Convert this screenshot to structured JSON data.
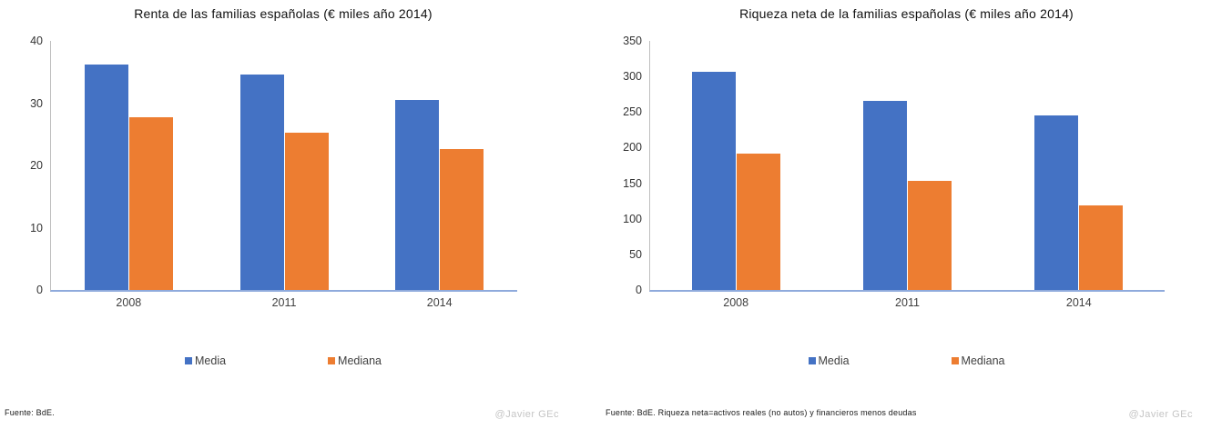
{
  "colors": {
    "media_blue": "#4472C4",
    "mediana_orange": "#ED7D31",
    "x_axis_line": "#8FAADC",
    "y_axis_line": "#BFBFBF",
    "label_text": "#404040",
    "credit_gray": "#C5C5C5"
  },
  "chart_data": [
    {
      "type": "bar",
      "title": "Renta de las familias españolas  (€ miles año 2014)",
      "categories": [
        "2008",
        "2011",
        "2014"
      ],
      "series": [
        {
          "name": "Media",
          "color": "#4472C4",
          "values": [
            36.2,
            34.6,
            30.5
          ]
        },
        {
          "name": "Mediana",
          "color": "#ED7D31",
          "values": [
            27.8,
            25.2,
            22.7
          ]
        }
      ],
      "ylim": [
        0,
        40
      ],
      "yticks": [
        0,
        10,
        20,
        30,
        40
      ],
      "grid": false,
      "legend_position": "bottom",
      "source_note": "Fuente: BdE.",
      "credit": "@Javier GEc"
    },
    {
      "type": "bar",
      "title": "Riqueza neta de la familias españolas  (€ miles año 2014)",
      "categories": [
        "2008",
        "2011",
        "2014"
      ],
      "series": [
        {
          "name": "Media",
          "color": "#4472C4",
          "values": [
            306,
            266,
            245
          ]
        },
        {
          "name": "Mediana",
          "color": "#ED7D31",
          "values": [
            191,
            153,
            119
          ]
        }
      ],
      "ylim": [
        0,
        350
      ],
      "yticks": [
        0,
        50,
        100,
        150,
        200,
        250,
        300,
        350
      ],
      "grid": false,
      "legend_position": "bottom",
      "source_note": "Fuente: BdE. Riqueza neta=activos reales (no autos) y financieros menos deudas",
      "credit": "@Javier GEc"
    }
  ]
}
